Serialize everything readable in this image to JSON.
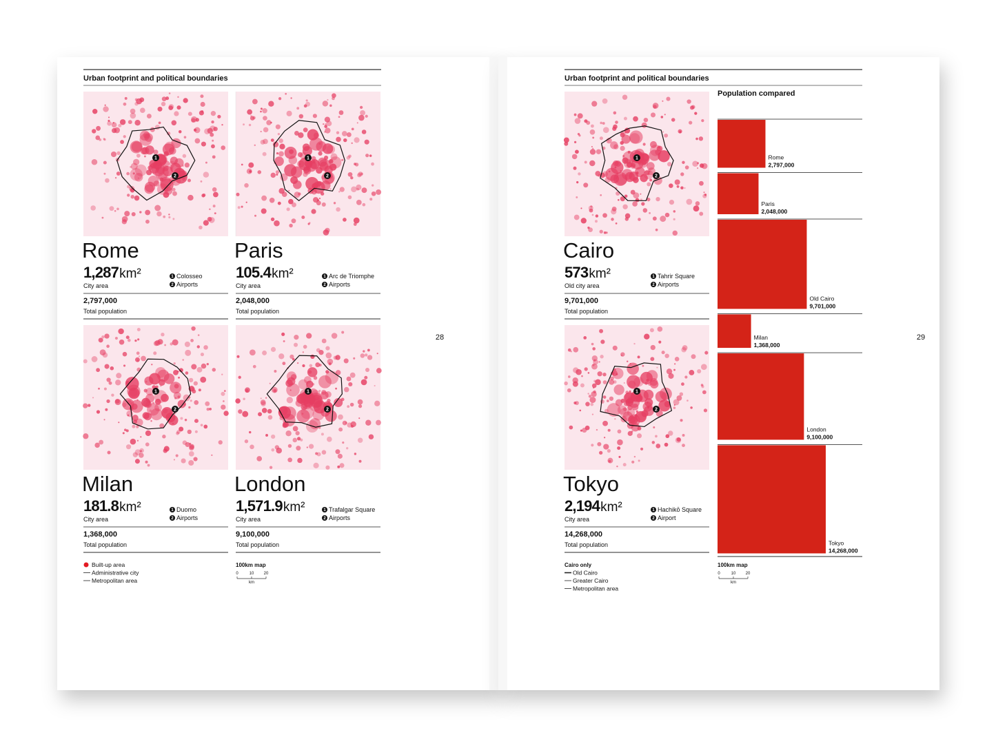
{
  "pages": [
    {
      "header": "Urban footprint and political boundaries",
      "page_number": "28",
      "cities": [
        {
          "name": "Rome",
          "area": "1,287",
          "unit": "km²",
          "area_label": "City area",
          "population": "2,797,000",
          "population_label": "Total population",
          "legend": [
            {
              "n": "1",
              "label": "Colosseo"
            },
            {
              "n": "2",
              "label": "Airports"
            }
          ]
        },
        {
          "name": "Paris",
          "area": "105.4",
          "unit": "km²",
          "area_label": "City area",
          "population": "2,048,000",
          "population_label": "Total population",
          "legend": [
            {
              "n": "1",
              "label": "Arc de Triomphe"
            },
            {
              "n": "2",
              "label": "Airports"
            }
          ]
        },
        {
          "name": "Milan",
          "area": "181.8",
          "unit": "km²",
          "area_label": "City area",
          "population": "1,368,000",
          "population_label": "Total population",
          "legend": [
            {
              "n": "1",
              "label": "Duomo"
            },
            {
              "n": "2",
              "label": "Airports"
            }
          ]
        },
        {
          "name": "London",
          "area": "1,571.9",
          "unit": "km²",
          "area_label": "City area",
          "population": "9,100,000",
          "population_label": "Total population",
          "legend": [
            {
              "n": "1",
              "label": "Trafalgar Square"
            },
            {
              "n": "2",
              "label": "Airports"
            }
          ]
        }
      ],
      "key": {
        "items": [
          "Built-up area",
          "Administrative city",
          "Metropolitan area"
        ]
      },
      "scale": {
        "title": "100km map",
        "ticks": [
          "0",
          "10",
          "20"
        ],
        "unit": "km"
      }
    },
    {
      "header": "Urban footprint and political boundaries",
      "page_number": "29",
      "cities": [
        {
          "name": "Cairo",
          "area": "573",
          "unit": "km²",
          "area_label": "Old city area",
          "population": "9,701,000",
          "population_label": "Total population",
          "legend": [
            {
              "n": "1",
              "label": "Tahrir Square"
            },
            {
              "n": "2",
              "label": "Airports"
            }
          ]
        },
        {
          "name": "Tokyo",
          "area": "2,194",
          "unit": "km²",
          "area_label": "City area",
          "population": "14,268,000",
          "population_label": "Total population",
          "legend": [
            {
              "n": "1",
              "label": "Hachikō Square"
            },
            {
              "n": "2",
              "label": "Airport"
            }
          ]
        }
      ],
      "key": {
        "title": "Cairo only",
        "items": [
          "Old Cairo",
          "Greater Cairo",
          "Metropolitan area"
        ]
      },
      "scale": {
        "title": "100km map",
        "ticks": [
          "0",
          "10",
          "20"
        ],
        "unit": "km"
      }
    }
  ],
  "chart_data": {
    "type": "bar",
    "title": "Population compared",
    "categories": [
      "Rome",
      "Paris",
      "Old Cairo",
      "Milan",
      "London",
      "Tokyo"
    ],
    "values": [
      2797000,
      2048000,
      9701000,
      1368000,
      9100000,
      14268000
    ],
    "value_labels": [
      "2,797,000",
      "2,048,000",
      "9,701,000",
      "1,368,000",
      "9,100,000",
      "14,268,000"
    ],
    "color": "#d42318"
  }
}
